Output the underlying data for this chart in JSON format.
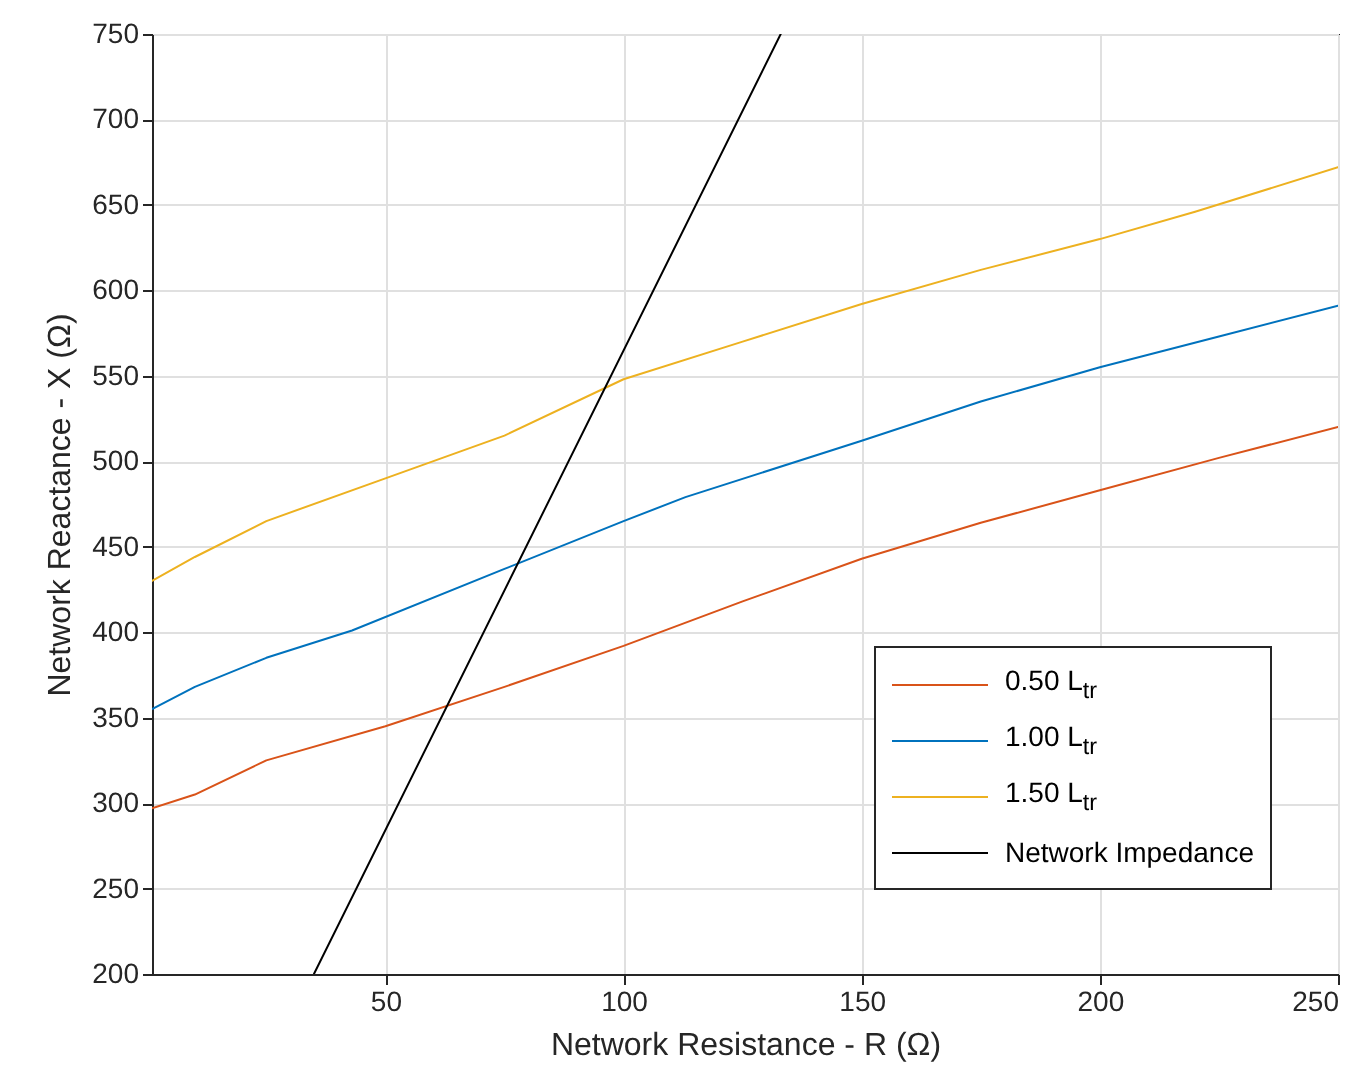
{
  "chart_data": {
    "type": "line",
    "xlabel": "Network Resistance - R (Ω)",
    "ylabel": "Network Reactance - X (Ω)",
    "xlim": [
      1,
      250
    ],
    "xticks": [
      50,
      100,
      150,
      200,
      250
    ],
    "ylim": [
      200,
      750
    ],
    "yticks": [
      200,
      250,
      300,
      350,
      400,
      450,
      500,
      550,
      600,
      650,
      700,
      750
    ],
    "grid": true,
    "legend": "bottom right",
    "line_style": "solid",
    "marker": "none",
    "series": [
      {
        "name": "0.50 L$_{tr}$",
        "color": "#d95319",
        "x": [
          1,
          10,
          25,
          50,
          75,
          100,
          125,
          150,
          175,
          200,
          225,
          250
        ],
        "values": [
          297,
          305,
          325,
          345,
          368,
          392,
          418,
          443,
          464,
          483,
          502,
          520
        ]
      },
      {
        "name": "1.00 L$_{tr}$",
        "color": "#0072bd",
        "x": [
          1,
          10,
          25,
          43,
          75,
          100,
          113,
          150,
          175,
          200,
          225,
          250
        ],
        "values": [
          355,
          368,
          385,
          401,
          437,
          465,
          479,
          512,
          535,
          555,
          573,
          591
        ]
      },
      {
        "name": "1.50 L$_{tr}$",
        "color": "#edb120",
        "x": [
          1,
          10,
          25,
          50,
          75,
          100,
          125,
          150,
          175,
          200,
          220,
          250
        ],
        "values": [
          430,
          444,
          465,
          490,
          515,
          548,
          570,
          592,
          612,
          630,
          646,
          672
        ]
      },
      {
        "name": "Network Impedance",
        "color": "#000000",
        "x": [
          35,
          133
        ],
        "values": [
          200,
          750
        ]
      }
    ]
  }
}
